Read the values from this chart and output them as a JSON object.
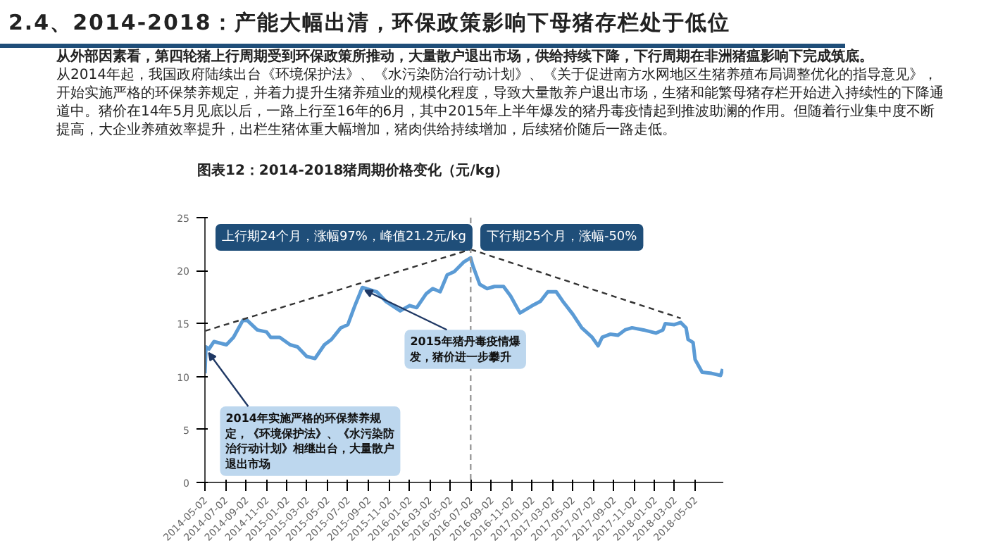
{
  "chart_data": {
    "type": "line",
    "title": "2.4、2014-2018：产能大幅出清，环保政策影响下母猪存栏处于低位",
    "subtitle": "从外部因素看，第四轮猪上行周期受到环保政策所推动，大量散户退出市场，供给持续下降，下行周期在非洲猪瘟影响下完成筑底。",
    "annotations": [
      "从2014年起，我国政府陆续出台《环境保护法》、《水污染防治行动计划》、《关于促进南方水网地区生猪养殖布局调整优化的指导意见》，开始实施严格的环保禁养规定，并着力提升生猪养殖业的规模化程度，导致大量散养户退出市场，生猪和能繁母猪存栏开始进入持续性的下降通道中。猪价在14年5月见底以后，一路上行至16年的6月，其中2015年上半年爆发的猪丹毒疫情起到推波助澜的作用。但随着行业集中度不断提高，大企业养殖效率提升，出栏生猪体重大幅增加，猪肉供给持续增加，后续猪价随后一路走低。",
      "图表12：2014-2018猪周期价格变化（元/kg）",
      "上行期24个月，涨幅97%，峰值21.2元/kg",
      "下行期25个月，涨幅-50%",
      {
        "text": "2014年实施严格的环保禁养规定，《环境保护法》、《水污染防治行动计划》相继出台，大量散户退出市场",
        "x": "2014-05-05",
        "y": 12.5
      },
      {
        "text": "2015年猪丹毒疫情爆发，猪价进一步攀升",
        "x": "2015-08-14",
        "y": 18.4
      }
    ],
    "xlim": [
      "2014-05-02",
      "2018-07-25"
    ],
    "xticks": [
      "2014-05-02",
      "2014-07-02",
      "2014-09-02",
      "2014-11-02",
      "2015-01-02",
      "2015-03-02",
      "2015-05-02",
      "2015-07-02",
      "2015-09-02",
      "2015-11-02",
      "2016-01-02",
      "2016-03-02",
      "2016-05-02",
      "2016-07-02",
      "2016-09-02",
      "2016-11-02",
      "2017-01-02",
      "2017-03-02",
      "2017-05-02",
      "2017-07-02",
      "2017-09-02",
      "2017-11-02",
      "2018-01-02",
      "2018-03-02",
      "2018-05-02"
    ],
    "ylim": [
      0,
      25
    ],
    "yticks": [
      0,
      5,
      10,
      15,
      20,
      25
    ],
    "grid": false,
    "ref_lines": [
      {
        "axis": "x",
        "value": "2016-07-02",
        "color": "#999999",
        "line_style": "dashed"
      }
    ],
    "series": [
      {
        "color": "#5b9bd5",
        "x": [
          "2014-05-02",
          "2014-05-05",
          "2014-05-14",
          "2014-05-29",
          "2014-07-05",
          "2014-07-26",
          "2014-08-23",
          "2014-09-05",
          "2014-10-05",
          "2014-11-02",
          "2014-11-14",
          "2014-12-11",
          "2015-01-11",
          "2015-02-02",
          "2015-03-01",
          "2015-03-26",
          "2015-04-23",
          "2015-05-14",
          "2015-06-11",
          "2015-07-02",
          "2015-07-23",
          "2015-08-14",
          "2015-08-26",
          "2015-09-26",
          "2015-10-23",
          "2015-12-05",
          "2016-01-02",
          "2016-01-23",
          "2016-02-20",
          "2016-03-11",
          "2016-04-02",
          "2016-04-23",
          "2016-05-14",
          "2016-06-11",
          "2016-07-02",
          "2016-07-08",
          "2016-07-29",
          "2016-08-20",
          "2016-09-11",
          "2016-10-08",
          "2016-10-29",
          "2016-11-26",
          "2017-01-02",
          "2017-01-26",
          "2017-02-17",
          "2017-03-14",
          "2017-04-05",
          "2017-05-02",
          "2017-05-29",
          "2017-06-29",
          "2017-07-17",
          "2017-07-29",
          "2017-08-23",
          "2017-09-14",
          "2017-10-05",
          "2017-10-26",
          "2017-11-29",
          "2018-01-05",
          "2018-01-26",
          "2018-02-02",
          "2018-03-01",
          "2018-03-20",
          "2018-04-05",
          "2018-04-11",
          "2018-04-26",
          "2018-05-02",
          "2018-05-23",
          "2018-06-20",
          "2018-07-17",
          "2018-07-23"
        ],
        "values": [
          10.3,
          12.8,
          12.6,
          13.3,
          13.0,
          13.7,
          15.3,
          15.3,
          14.4,
          14.2,
          13.7,
          13.7,
          13.0,
          12.8,
          11.9,
          11.7,
          13.0,
          13.5,
          14.6,
          14.9,
          16.7,
          18.4,
          18.3,
          18.0,
          17.1,
          16.2,
          16.7,
          16.5,
          17.8,
          18.3,
          18.0,
          19.6,
          19.9,
          20.8,
          21.2,
          20.5,
          18.7,
          18.3,
          18.5,
          18.5,
          17.6,
          16.0,
          16.7,
          17.1,
          18.0,
          18.0,
          17.0,
          15.9,
          14.6,
          13.7,
          12.9,
          13.7,
          14.0,
          13.9,
          14.4,
          14.6,
          14.4,
          14.1,
          14.4,
          15.0,
          14.9,
          15.1,
          14.6,
          13.5,
          13.2,
          11.6,
          10.4,
          10.3,
          10.1,
          10.7
        ]
      },
      {
        "type": "line",
        "color": "#333333",
        "line_style": "dashed",
        "x": [
          "2014-05-02",
          "2016-07-02"
        ],
        "values": [
          14.3,
          22.0
        ]
      },
      {
        "type": "line",
        "color": "#333333",
        "line_style": "dashed",
        "x": [
          "2016-07-02",
          "2018-03-20"
        ],
        "values": [
          22.0,
          15.5
        ]
      }
    ]
  }
}
